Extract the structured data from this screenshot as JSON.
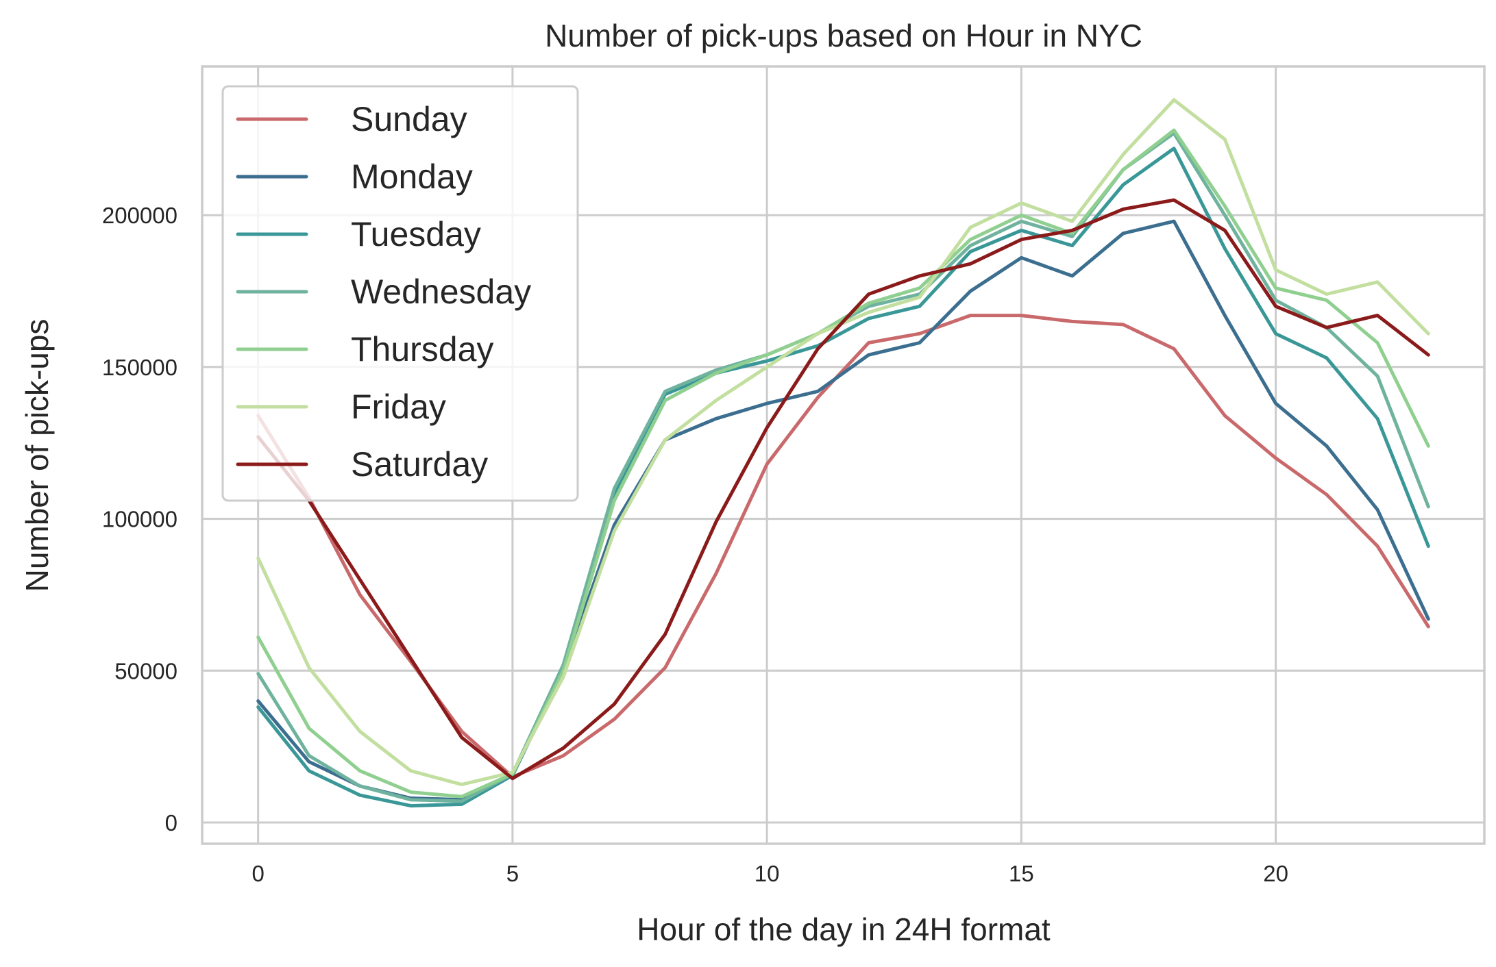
{
  "chart_data": {
    "type": "line",
    "title": "Number of pick-ups based on Hour in NYC",
    "xlabel": "Hour of the day in 24H format",
    "ylabel": "Number of pick-ups",
    "xlim": [
      -1.1,
      24.1
    ],
    "ylim": [
      -7000,
      249000
    ],
    "xticks": [
      0,
      5,
      10,
      15,
      20
    ],
    "yticks": [
      0,
      50000,
      100000,
      150000,
      200000
    ],
    "grid": true,
    "legend_position": "upper-left",
    "x": [
      0,
      1,
      2,
      3,
      4,
      5,
      6,
      7,
      8,
      9,
      10,
      11,
      12,
      13,
      14,
      15,
      16,
      17,
      18,
      19,
      20,
      21,
      22,
      23
    ],
    "series": [
      {
        "name": "Sunday",
        "color": "#c9696c",
        "opacity": 1,
        "values": [
          134000,
          107000,
          75000,
          53000,
          30000,
          15000,
          22000,
          34000,
          51000,
          82000,
          118000,
          140000,
          158000,
          161000,
          167000,
          167000,
          165000,
          164000,
          156000,
          134000,
          120000,
          108000,
          91000,
          64500
        ]
      },
      {
        "name": "Monday",
        "color": "#3c6e8f",
        "opacity": 1,
        "values": [
          40000,
          20000,
          12000,
          8000,
          7500,
          15500,
          50000,
          98000,
          126000,
          133000,
          138000,
          142000,
          154000,
          158000,
          175000,
          186000,
          180000,
          194000,
          198000,
          167000,
          138000,
          124000,
          103000,
          67000
        ]
      },
      {
        "name": "Tuesday",
        "color": "#3a9797",
        "opacity": 1,
        "values": [
          38000,
          17000,
          9000,
          5500,
          6000,
          15500,
          51000,
          108000,
          141000,
          148000,
          152000,
          157000,
          166000,
          170000,
          188000,
          195000,
          190000,
          210000,
          222000,
          189000,
          161000,
          153000,
          133000,
          91000
        ]
      },
      {
        "name": "Wednesday",
        "color": "#6fb39f",
        "opacity": 1,
        "values": [
          49000,
          22000,
          12000,
          7500,
          7000,
          16000,
          52000,
          110000,
          142000,
          149000,
          154000,
          161000,
          170000,
          174000,
          190000,
          198000,
          193000,
          215000,
          227000,
          200000,
          172000,
          163000,
          147000,
          104000
        ]
      },
      {
        "name": "Thursday",
        "color": "#8fcf8f",
        "opacity": 1,
        "values": [
          61000,
          31000,
          17000,
          10000,
          8500,
          16000,
          50000,
          106000,
          139000,
          148000,
          154000,
          161000,
          171000,
          176000,
          192000,
          200000,
          194000,
          215000,
          228000,
          203000,
          176000,
          172000,
          158000,
          124000
        ]
      },
      {
        "name": "Friday",
        "color": "#c2dfa0",
        "opacity": 1,
        "values": [
          87000,
          51000,
          30000,
          17000,
          12500,
          16500,
          48000,
          96000,
          126000,
          139000,
          150000,
          161000,
          168000,
          173000,
          196000,
          204000,
          198000,
          220000,
          238000,
          225000,
          182000,
          174000,
          178000,
          161000
        ]
      },
      {
        "name": "Saturday",
        "color": "#8b1a1a",
        "opacity": 1,
        "values": [
          127000,
          106000,
          80000,
          54000,
          28000,
          14500,
          24500,
          39000,
          62000,
          99000,
          130000,
          156000,
          174000,
          180000,
          184000,
          192000,
          195000,
          202000,
          205000,
          195000,
          170000,
          163000,
          167000,
          154000
        ]
      }
    ]
  }
}
